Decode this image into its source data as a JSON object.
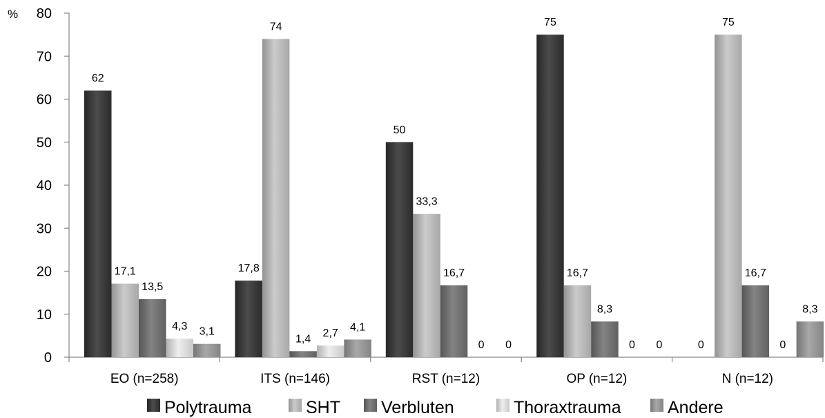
{
  "chart_data": {
    "type": "bar",
    "ylabel": "%",
    "ylim": [
      0,
      80
    ],
    "yticks": [
      0,
      10,
      20,
      30,
      40,
      50,
      60,
      70,
      80
    ],
    "grid": false,
    "legend_position": "bottom",
    "categories": [
      "EO (n=258)",
      "ITS (n=146)",
      "RST (n=12)",
      "OP (n=12)",
      "N (n=12)"
    ],
    "series": [
      {
        "name": "Polytrauma",
        "color": "#333333",
        "values": [
          62,
          17.8,
          50,
          75,
          0
        ],
        "labels": [
          "62",
          "17,8",
          "50",
          "75",
          "0"
        ]
      },
      {
        "name": "SHT",
        "color": "#c4c4c4",
        "values": [
          17.1,
          74,
          33.3,
          16.7,
          75
        ],
        "labels": [
          "17,1",
          "74",
          "33,3",
          "16,7",
          "75"
        ]
      },
      {
        "name": "Verbluten",
        "color": "#727272",
        "values": [
          13.5,
          1.4,
          16.7,
          8.3,
          16.7
        ],
        "labels": [
          "13,5",
          "1,4",
          "16,7",
          "8,3",
          "16,7"
        ]
      },
      {
        "name": "Thoraxtrauma",
        "color": "#ececec",
        "values": [
          4.3,
          2.7,
          0,
          0,
          0
        ],
        "labels": [
          "4,3",
          "2,7",
          "0",
          "0",
          "0"
        ]
      },
      {
        "name": "Andere",
        "color": "#9c9c9c",
        "values": [
          3.1,
          4.1,
          0,
          0,
          8.3
        ],
        "labels": [
          "3,1",
          "4,1",
          "0",
          "0",
          "8,3"
        ]
      }
    ]
  }
}
